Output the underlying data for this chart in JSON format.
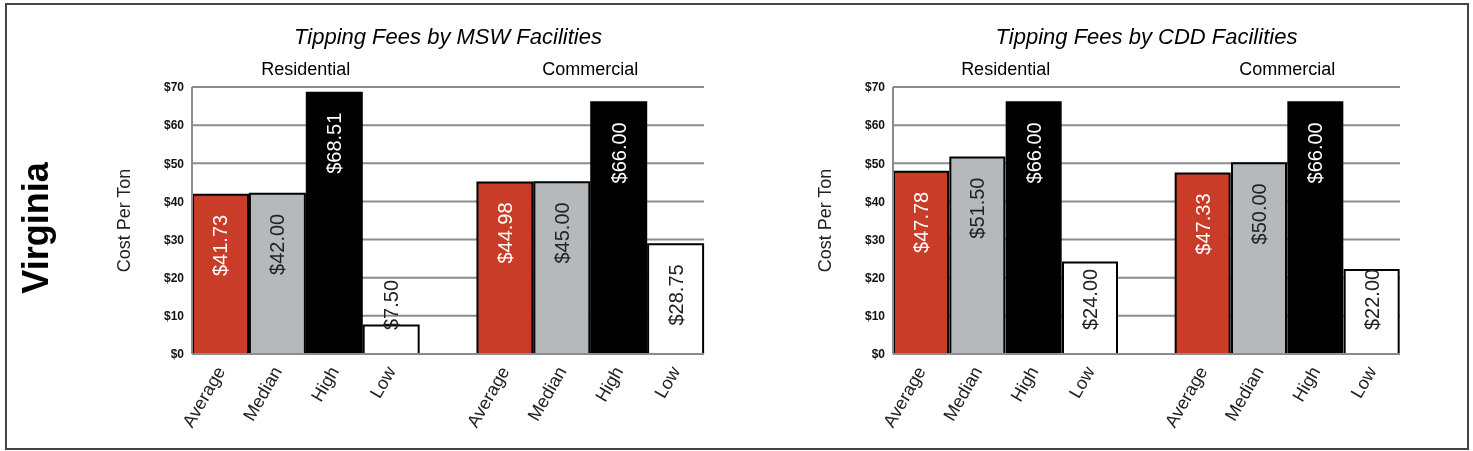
{
  "chart_data": [
    {
      "type": "bar",
      "title": "Tipping Fees by MSW Facilities",
      "ylabel": "Cost Per Ton",
      "annotations": [
        "Residential",
        "Commercial",
        "Virginia"
      ],
      "categories": [
        "Average",
        "Median",
        "High",
        "Low",
        null,
        "Average",
        "Median",
        "High",
        "Low"
      ],
      "values": [
        41.73,
        42.0,
        68.51,
        7.5,
        null,
        44.98,
        45.0,
        66.0,
        28.75
      ],
      "value_labels": [
        "$41.73",
        "$42.00",
        "$68.51",
        "$7.50",
        null,
        "$44.98",
        "$45.00",
        "$66.00",
        "$28.75"
      ],
      "colors": [
        "#c83c28",
        "#b5b9bb",
        "#000000",
        "#ffffff",
        null,
        "#c83c28",
        "#b5b9bb",
        "#000000",
        "#ffffff"
      ],
      "ylim": [
        0,
        70
      ],
      "yticks": [
        {
          "value": 0,
          "label": "$0"
        },
        {
          "value": 10,
          "label": "$10"
        },
        {
          "value": 20,
          "label": "$20"
        },
        {
          "value": 30,
          "label": "$30"
        },
        {
          "value": 40,
          "label": "$40"
        },
        {
          "value": 50,
          "label": "$50"
        },
        {
          "value": 60,
          "label": "$60"
        },
        {
          "value": 70,
          "label": "$70"
        }
      ],
      "grid": "y"
    },
    {
      "type": "bar",
      "title": "Tipping Fees by CDD Facilities",
      "ylabel": "Cost Per Ton",
      "annotations": [
        "Residential",
        "Commercial"
      ],
      "categories": [
        "Average",
        "Median",
        "High",
        "Low",
        null,
        "Average",
        "Median",
        "High",
        "Low"
      ],
      "values": [
        47.78,
        51.5,
        66.0,
        24.0,
        null,
        47.33,
        50.0,
        66.0,
        22.0
      ],
      "value_labels": [
        "$47.78",
        "$51.50",
        "$66.00",
        "$24.00",
        null,
        "$47.33",
        "$50.00",
        "$66.00",
        "$22.00"
      ],
      "colors": [
        "#c83c28",
        "#b5b9bb",
        "#000000",
        "#ffffff",
        null,
        "#c83c28",
        "#b5b9bb",
        "#000000",
        "#ffffff"
      ],
      "ylim": [
        0,
        70
      ],
      "yticks": [
        {
          "value": 0,
          "label": "$0"
        },
        {
          "value": 10,
          "label": "$10"
        },
        {
          "value": 20,
          "label": "$20"
        },
        {
          "value": 30,
          "label": "$30"
        },
        {
          "value": 40,
          "label": "$40"
        },
        {
          "value": 50,
          "label": "$50"
        },
        {
          "value": 60,
          "label": "$60"
        },
        {
          "value": 70,
          "label": "$70"
        }
      ],
      "grid": "y"
    }
  ]
}
